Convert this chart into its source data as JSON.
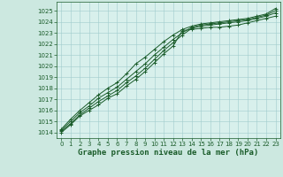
{
  "background_color": "#cce8e0",
  "plot_bg_color": "#d8f0ec",
  "line_color": "#1a5c2a",
  "grid_color": "#a0cccc",
  "xlabel": "Graphe pression niveau de la mer (hPa)",
  "xlabel_fontsize": 6.5,
  "xlim": [
    -0.5,
    23.5
  ],
  "ylim": [
    1013.5,
    1025.8
  ],
  "xticks": [
    0,
    1,
    2,
    3,
    4,
    5,
    6,
    7,
    8,
    9,
    10,
    11,
    12,
    13,
    14,
    15,
    16,
    17,
    18,
    19,
    20,
    21,
    22,
    23
  ],
  "yticks": [
    1014,
    1015,
    1016,
    1017,
    1018,
    1019,
    1020,
    1021,
    1022,
    1023,
    1024,
    1025
  ],
  "series": [
    [
      1014.0,
      1014.7,
      1015.5,
      1016.0,
      1016.5,
      1017.1,
      1017.5,
      1018.2,
      1018.8,
      1019.5,
      1020.3,
      1021.1,
      1021.8,
      1023.2,
      1023.3,
      1023.4,
      1023.5,
      1023.5,
      1023.6,
      1023.7,
      1023.9,
      1024.1,
      1024.3,
      1024.5
    ],
    [
      1014.1,
      1014.8,
      1015.6,
      1016.2,
      1016.8,
      1017.3,
      1017.8,
      1018.5,
      1019.1,
      1019.8,
      1020.6,
      1021.4,
      1022.1,
      1022.8,
      1023.4,
      1023.6,
      1023.7,
      1023.8,
      1023.9,
      1024.0,
      1024.1,
      1024.3,
      1024.5,
      1024.8
    ],
    [
      1014.2,
      1015.0,
      1015.8,
      1016.4,
      1017.1,
      1017.6,
      1018.1,
      1018.8,
      1019.5,
      1020.2,
      1021.0,
      1021.7,
      1022.4,
      1023.0,
      1023.5,
      1023.7,
      1023.8,
      1023.9,
      1024.0,
      1024.1,
      1024.2,
      1024.4,
      1024.6,
      1025.0
    ],
    [
      1014.3,
      1015.2,
      1016.0,
      1016.7,
      1017.4,
      1018.0,
      1018.5,
      1019.3,
      1020.2,
      1020.8,
      1021.5,
      1022.2,
      1022.8,
      1023.3,
      1023.6,
      1023.8,
      1023.9,
      1024.0,
      1024.1,
      1024.2,
      1024.3,
      1024.5,
      1024.7,
      1025.2
    ]
  ],
  "marker": "+",
  "marker_size": 3,
  "linewidth": 0.7,
  "tick_fontsize": 5,
  "tick_color": "#1a5c2a",
  "figsize": [
    3.2,
    2.0
  ],
  "dpi": 100
}
